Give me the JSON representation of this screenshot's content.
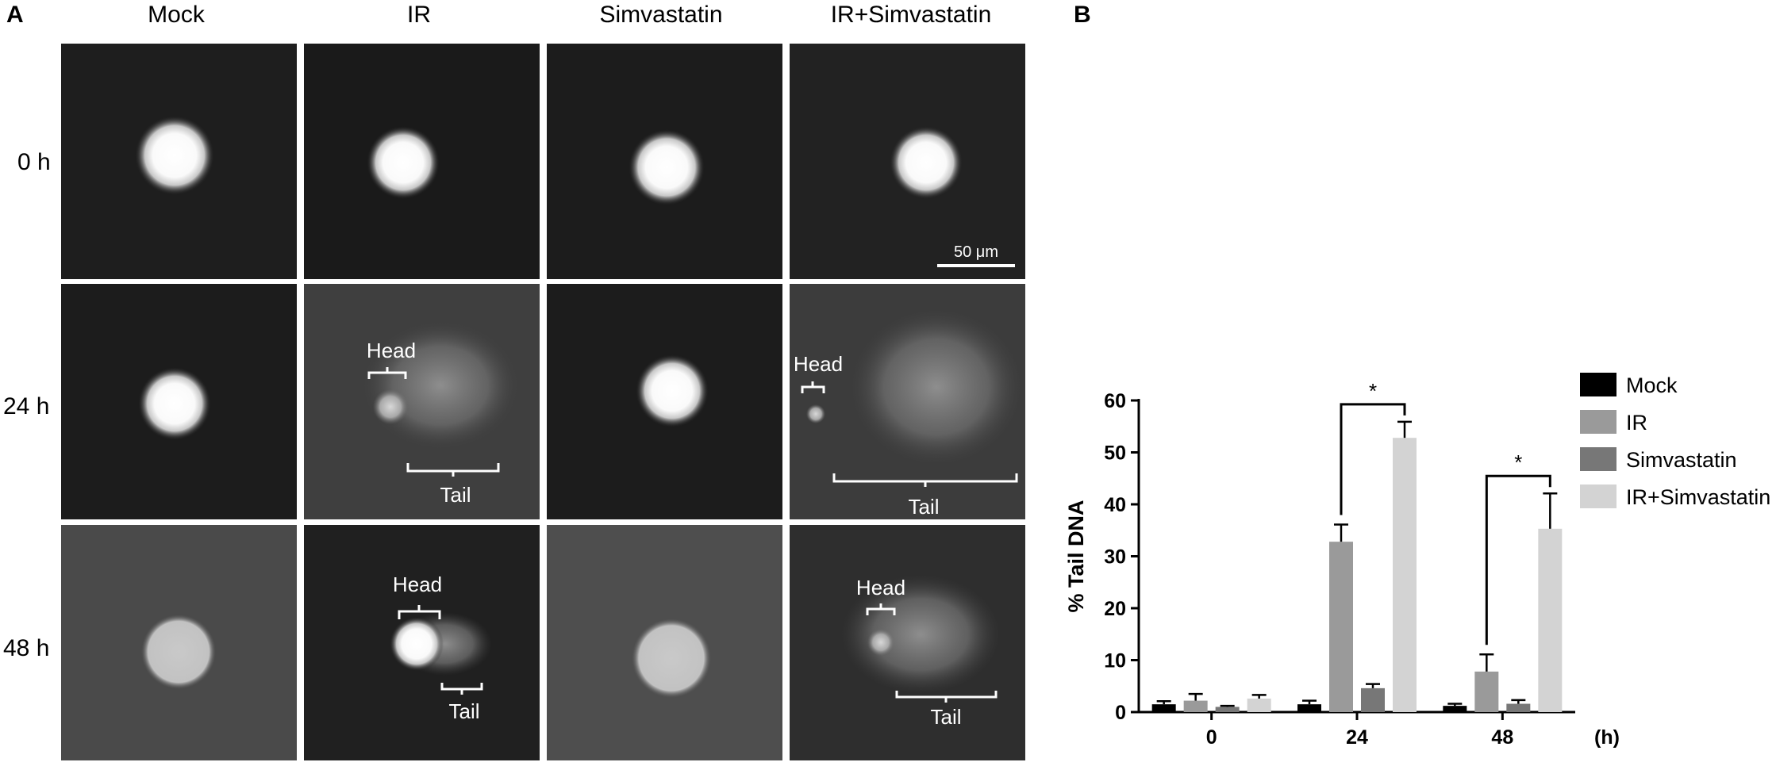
{
  "panel_a": {
    "letter": "A",
    "columns": [
      "Mock",
      "IR",
      "Simvastatin",
      "IR+Simvastatin"
    ],
    "rows": [
      "0 h",
      "24 h",
      "48 h"
    ],
    "scale_bar": "50 μm",
    "annotations": {
      "head": "Head",
      "tail": "Tail"
    }
  },
  "panel_b": {
    "letter": "B"
  },
  "chart_data": {
    "type": "bar",
    "categories": [
      "0",
      "24",
      "48"
    ],
    "xunit": "(h)",
    "ylabel": "% Tail DNA",
    "ylim": [
      0,
      60
    ],
    "yticks": [
      0,
      10,
      20,
      30,
      40,
      50,
      60
    ],
    "legend_position": "top-right",
    "series": [
      {
        "name": "Mock",
        "color": "#000000",
        "values": [
          1.5,
          1.5,
          1.2
        ],
        "errors": [
          0.6,
          0.7,
          0.4
        ]
      },
      {
        "name": "IR",
        "color": "#9a9a9a",
        "values": [
          2.2,
          32.8,
          7.8
        ],
        "errors": [
          1.3,
          3.3,
          3.3
        ]
      },
      {
        "name": "Simvastatin",
        "color": "#777777",
        "values": [
          1.0,
          4.6,
          1.6
        ],
        "errors": [
          0.2,
          0.8,
          0.7
        ]
      },
      {
        "name": "IR+Simvastatin",
        "color": "#d3d3d3",
        "values": [
          2.6,
          52.8,
          35.3
        ],
        "errors": [
          0.7,
          3.1,
          6.8
        ]
      }
    ],
    "significance": [
      {
        "category": "24",
        "from": "IR",
        "to": "IR+Simvastatin",
        "label": "*"
      },
      {
        "category": "48",
        "from": "IR",
        "to": "IR+Simvastatin",
        "label": "*"
      }
    ]
  }
}
